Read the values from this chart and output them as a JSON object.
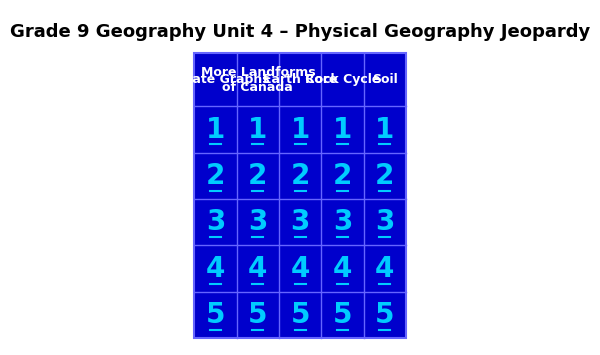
{
  "title": "Grade 9 Geography Unit 4 – Physical Geography Jeopardy",
  "title_fontsize": 13,
  "title_color": "#000000",
  "background_color": "#ffffff",
  "table_bg": "#0000CC",
  "grid_color": "#6666FF",
  "header_text_color": "#ffffff",
  "cell_text_color": "#00CCFF",
  "columns": [
    "Climate Graphs",
    "More Landforms\nof Canada",
    "Earth Core",
    "Rock Cycle",
    "Soil"
  ],
  "rows": [
    "1",
    "2",
    "3",
    "4",
    "5"
  ],
  "header_fontsize": 9,
  "cell_fontsize": 20
}
